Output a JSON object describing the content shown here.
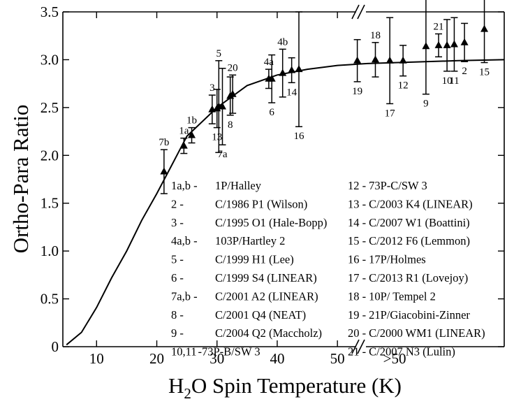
{
  "chart_data": {
    "type": "scatter",
    "ylabel": "Ortho-Para Ratio",
    "xlabel": [
      "H",
      "2",
      "O Spin Temperature (K)"
    ],
    "xlim": [
      4.4,
      77.7
    ],
    "ylim": [
      0,
      3.5
    ],
    "xticks": [
      10,
      20,
      30,
      40,
      50,
      {
        "value": 59.5,
        "label": ">50"
      }
    ],
    "yticks": [
      0,
      0.5,
      {
        "value": 1,
        "label": "1.0"
      },
      1.5,
      {
        "value": 2,
        "label": "2.0"
      },
      2.5,
      {
        "value": 3,
        "label": "3.0"
      },
      3.5
    ],
    "color": "#000000",
    "curve": {
      "x": [
        5,
        7.5,
        10,
        12.5,
        15,
        17.5,
        20,
        22.5,
        25,
        30,
        35,
        40,
        45,
        50,
        55,
        60,
        70,
        77.7
      ],
      "values": [
        0.02,
        0.15,
        0.41,
        0.72,
        1.0,
        1.32,
        1.6,
        1.9,
        2.2,
        2.5,
        2.73,
        2.84,
        2.9,
        2.94,
        2.96,
        2.97,
        2.99,
        3.0
      ]
    },
    "points": [
      {
        "label": "7b",
        "x": 21.2,
        "y": 1.83,
        "err": 0.23
      },
      {
        "label": "1a",
        "x": 24.5,
        "y": 2.1,
        "err": 0.08
      },
      {
        "label": "1b",
        "x": 25.8,
        "y": 2.21,
        "err": 0.08
      },
      {
        "label": "3",
        "x": 29.2,
        "y": 2.48,
        "err": 0.15
      },
      {
        "label": "13",
        "x": 30.0,
        "y": 2.49,
        "err": 0.2
      },
      {
        "label": "5",
        "x": 30.3,
        "y": 2.51,
        "err": 0.48
      },
      {
        "label": "7a",
        "x": 30.9,
        "y": 2.51,
        "err": 0.4
      },
      {
        "label": "8",
        "x": 32.2,
        "y": 2.62,
        "err": 0.2
      },
      {
        "label": "20",
        "x": 32.6,
        "y": 2.64,
        "err": 0.2
      },
      {
        "label": "4a",
        "x": 38.6,
        "y": 2.8,
        "err": 0.1
      },
      {
        "label": "6",
        "x": 39.1,
        "y": 2.8,
        "err": 0.25
      },
      {
        "label": "4b",
        "x": 40.9,
        "y": 2.86,
        "err": 0.25
      },
      {
        "label": "14",
        "x": 42.4,
        "y": 2.89,
        "err": 0.13
      },
      {
        "label": "16",
        "x": 43.6,
        "y": 2.9,
        "err": 0.6
      },
      {
        "label": "19",
        "x": 53.3,
        "y": 2.99,
        "err": 0.22
      },
      {
        "label": "18",
        "x": 56.3,
        "y": 3.0,
        "err": 0.18
      },
      {
        "label": "17",
        "x": 58.7,
        "y": 2.99,
        "err": 0.45
      },
      {
        "label": "12",
        "x": 60.9,
        "y": 2.99,
        "err": 0.16
      },
      {
        "label": "9",
        "x": 64.7,
        "y": 3.14,
        "err": 0.5
      },
      {
        "label": "21",
        "x": 66.8,
        "y": 3.15,
        "err": 0.12
      },
      {
        "label": "10",
        "x": 68.2,
        "y": 3.15,
        "err": 0.27
      },
      {
        "label": "11",
        "x": 69.4,
        "y": 3.16,
        "err": 0.28
      },
      {
        "label": "2",
        "x": 71.1,
        "y": 3.18,
        "err": 0.2
      },
      {
        "label": "15",
        "x": 74.4,
        "y": 3.32,
        "err": 0.35
      }
    ],
    "legend": [
      [
        {
          "key": "1a,b -",
          "name": "1P/Halley"
        },
        {
          "key": "2 -",
          "name": "C/1986 P1 (Wilson)"
        },
        {
          "key": "3 -",
          "name": "C/1995 O1 (Hale-Bopp)"
        },
        {
          "key": "4a,b -",
          "name": "103P/Hartley 2"
        },
        {
          "key": "5 -",
          "name": "C/1999 H1 (Lee)"
        },
        {
          "key": "6 -",
          "name": "C/1999 S4 (LINEAR)"
        },
        {
          "key": "7a,b -",
          "name": "C/2001 A2 (LINEAR)"
        },
        {
          "key": "8 -",
          "name": "C/2001 Q4 (NEAT)"
        },
        {
          "key": "9 -",
          "name": "C/2004 Q2 (Maccholz)"
        },
        {
          "key": "10,11",
          "name": "-73P-B/SW 3"
        }
      ],
      [
        {
          "key": "12 -",
          "name": "73P-C/SW 3"
        },
        {
          "key": "13 -",
          "name": "C/2003 K4 (LINEAR)"
        },
        {
          "key": "14 -",
          "name": "C/2007 W1 (Boattini)"
        },
        {
          "key": "15 -",
          "name": "C/2012 F6 (Lemmon)"
        },
        {
          "key": "16 -",
          "name": "17P/Holmes"
        },
        {
          "key": "17 -",
          "name": "C/2013 R1 (Lovejoy)"
        },
        {
          "key": "18 -",
          "name": "10P/ Tempel 2"
        },
        {
          "key": "19 -",
          "name": "21P/Giacobini-Zinner"
        },
        {
          "key": "20 -",
          "name": "C/2000 WM1 (LINEAR)"
        },
        {
          "key": "21 -",
          "name": "C/2007 N3 (Lulin)"
        }
      ]
    ]
  }
}
